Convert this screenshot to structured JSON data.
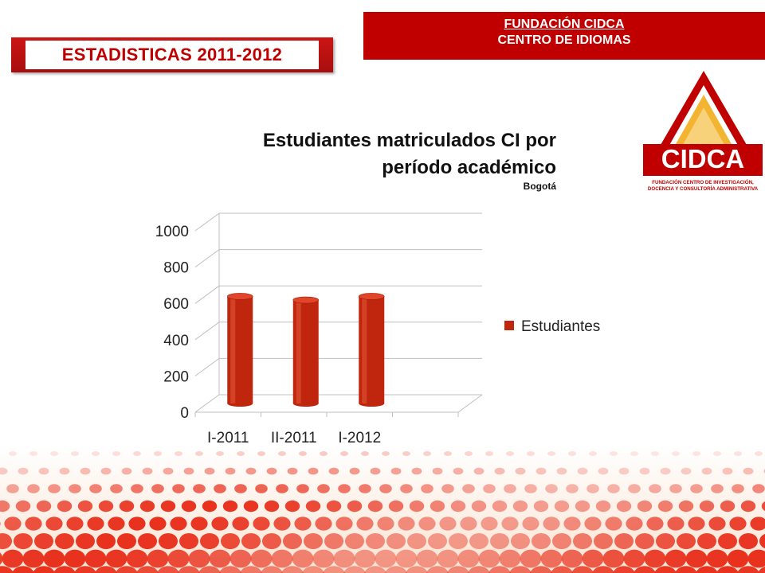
{
  "header": {
    "left_badge": "ESTADISTICAS 2011-2012",
    "right_line1": "FUNDACIÓN CIDCA",
    "right_line2": "CENTRO DE IDIOMAS"
  },
  "logo": {
    "text": "CIDCA",
    "tagline1": "FUNDACIÓN CENTRO DE INVESTIGACIÓN,",
    "tagline2": "DOCENCIA Y CONSULTORÍA ADMINISTRATIVA"
  },
  "colors": {
    "brand_red": "#c00000",
    "bar": "#c0260d",
    "bar_top": "#e2462a",
    "deco": "#e8321e"
  },
  "chart_data": {
    "type": "bar",
    "title_line1": "Estudiantes matriculados CI por",
    "title_line2": "período académico",
    "subtitle": "Bogotá",
    "categories": [
      "I-2011",
      "II-2011",
      "I-2012"
    ],
    "series": [
      {
        "name": "Estudiantes",
        "values": [
          590,
          570,
          590
        ]
      }
    ],
    "ylim": [
      0,
      1000
    ],
    "yticks": [
      "0",
      "200",
      "400",
      "600",
      "800",
      "1000"
    ],
    "grid": true,
    "legend": "right"
  }
}
